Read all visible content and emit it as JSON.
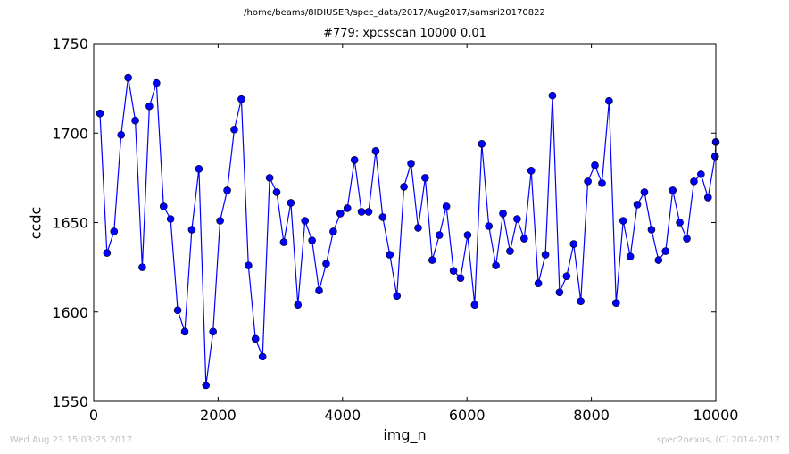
{
  "figure": {
    "suptitle": "/home/beams/8IDIUSER/spec_data/2017/Aug2017/samsri20170822",
    "footer_left": "Wed Aug 23 15:03:25 2017",
    "footer_right": "spec2nexus, (C) 2014-2017"
  },
  "chart_data": {
    "type": "line",
    "title": "#779: xpcsscan 10000 0.01",
    "xlabel": "img_n",
    "ylabel": "ccdc",
    "xlim": [
      0,
      10000
    ],
    "ylim": [
      1550,
      1750
    ],
    "xticks": [
      0,
      2000,
      4000,
      6000,
      8000,
      10000
    ],
    "yticks": [
      1550,
      1600,
      1650,
      1700,
      1750
    ],
    "grid": false,
    "legend": "none",
    "series": [
      {
        "color": "#0000ff",
        "marker": "circle",
        "x": [
          100,
          213,
          327,
          441,
          554,
          668,
          781,
          895,
          1009,
          1123,
          1236,
          1350,
          1464,
          1577,
          1691,
          1805,
          1918,
          2032,
          2146,
          2259,
          2373,
          2487,
          2600,
          2714,
          2828,
          2941,
          3055,
          3169,
          3282,
          3396,
          3510,
          3623,
          3737,
          3851,
          3964,
          4078,
          4192,
          4305,
          4419,
          4533,
          4646,
          4760,
          4874,
          4987,
          5101,
          5215,
          5328,
          5442,
          5556,
          5669,
          5783,
          5897,
          6010,
          6124,
          6238,
          6351,
          6465,
          6579,
          6692,
          6806,
          6920,
          7033,
          7147,
          7261,
          7374,
          7488,
          7602,
          7715,
          7829,
          7943,
          8056,
          8170,
          8284,
          8397,
          8511,
          8625,
          8738,
          8852,
          8966,
          9079,
          9193,
          9307,
          9420,
          9534,
          9648,
          9761,
          9875,
          9989,
          10000
        ],
        "y": [
          1711,
          1633,
          1645,
          1699,
          1731,
          1707,
          1625,
          1715,
          1728,
          1659,
          1652,
          1601,
          1589,
          1646,
          1680,
          1559,
          1589,
          1651,
          1668,
          1702,
          1719,
          1626,
          1585,
          1575,
          1675,
          1667,
          1639,
          1661,
          1604,
          1651,
          1640,
          1612,
          1627,
          1645,
          1655,
          1658,
          1685,
          1656,
          1656,
          1690,
          1653,
          1632,
          1609,
          1670,
          1683,
          1647,
          1675,
          1629,
          1643,
          1659,
          1623,
          1619,
          1643,
          1604,
          1694,
          1648,
          1626,
          1655,
          1634,
          1652,
          1641,
          1679,
          1616,
          1632,
          1721,
          1611,
          1620,
          1638,
          1606,
          1673,
          1682,
          1672,
          1718,
          1605,
          1651,
          1631,
          1660,
          1667,
          1646,
          1629,
          1634,
          1668,
          1650,
          1641,
          1673,
          1677,
          1664,
          1687,
          1695
        ]
      }
    ]
  }
}
